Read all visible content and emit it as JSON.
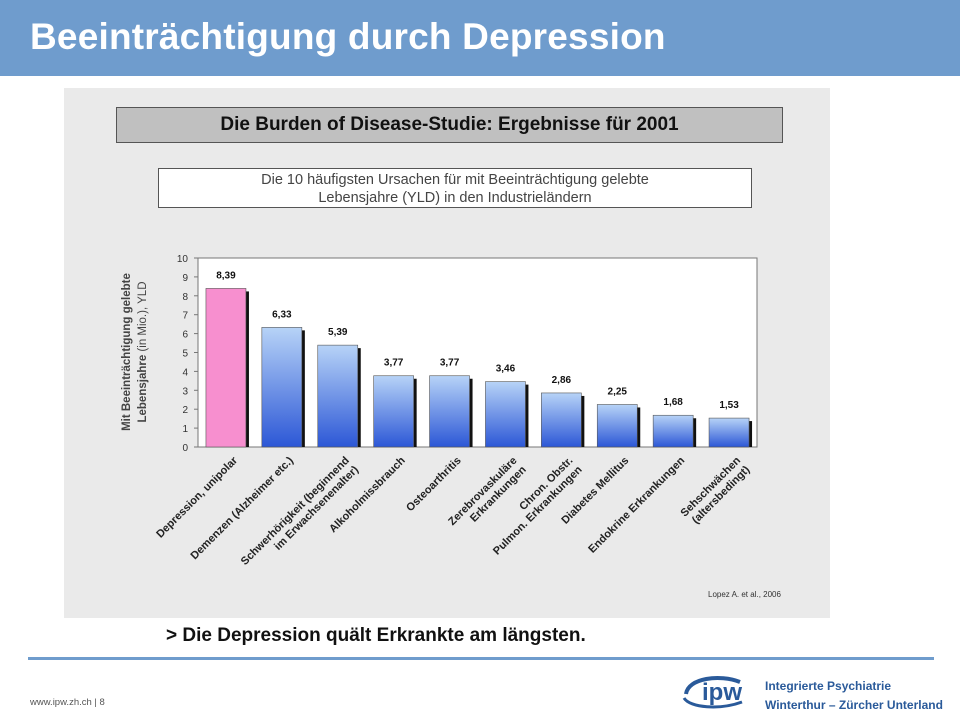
{
  "slide": {
    "title": "Beeinträchtigung durch Depression",
    "conclusion": "> Die Depression quält Erkrankte am längsten.",
    "footer": "www.ipw.zh.ch  |  8",
    "logo": {
      "mark": "ipw",
      "line1": "Integrierte Psychiatrie",
      "line2": "Winterthur – Zürcher Unterland"
    }
  },
  "chart_data": {
    "type": "bar",
    "title": "Die Burden of Disease-Studie: Ergebnisse für 2001",
    "subtitle_lines": [
      "Die 10 häufigsten Ursachen für mit Beeinträchtigung gelebte",
      "Lebensjahre (YLD) in den Industrieländern"
    ],
    "ylabel_bold": "Mit Beeinträchtigung gelebte",
    "ylabel_line2_bold": "Lebensjahre",
    "ylabel_line2_normal": " (in Mio.), YLD",
    "ylim": [
      0,
      10
    ],
    "yticks": [
      "0",
      "1",
      "2",
      "3",
      "4",
      "5",
      "6",
      "7",
      "8",
      "9",
      "10"
    ],
    "source": "Lopez  A. et al., 2006",
    "colors": {
      "highlight": "#f78fcf",
      "bar_top": "#b7d3f7",
      "bar_bottom": "#2c57d6"
    },
    "categories": [
      [
        "Depression, unipolar"
      ],
      [
        "Demenzen (Alzheimer etc.)"
      ],
      [
        "Schwerhörigkeit (beginnend",
        "im Erwachsenenalter)"
      ],
      [
        "Alkoholmissbrauch"
      ],
      [
        "Osteoarthritis"
      ],
      [
        "Zerebrovaskuläre",
        "Erkrankungen"
      ],
      [
        "Chron. Obstr.",
        "Pulmon. Erkrankungen"
      ],
      [
        "Diabetes Mellitus"
      ],
      [
        "Endokrine Erkrankungen"
      ],
      [
        "Sehschwächen",
        "(altersbedingt)"
      ]
    ],
    "values": [
      8.39,
      6.33,
      5.39,
      3.77,
      3.77,
      3.46,
      2.86,
      2.25,
      1.68,
      1.53
    ],
    "value_labels": [
      "8,39",
      "6,33",
      "5,39",
      "3,77",
      "3,77",
      "3,46",
      "2,86",
      "2,25",
      "1,68",
      "1,53"
    ]
  }
}
